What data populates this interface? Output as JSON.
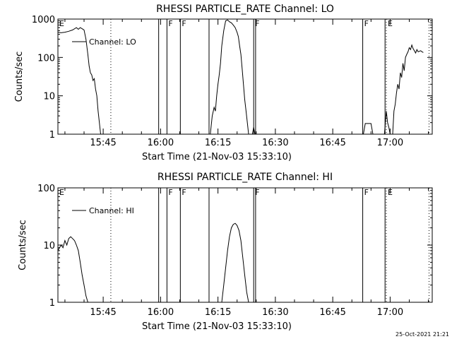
{
  "footer": {
    "timestamp": "25-Oct-2021 21:21"
  },
  "chart_data": [
    {
      "type": "line",
      "title": "RHESSI PARTICLE_RATE Channel: LO",
      "xlabel": "Start Time (21-Nov-03 15:33:10)",
      "ylabel": "Counts/sec",
      "yscale": "log",
      "ylim": [
        1,
        1000
      ],
      "xlim": [
        "15:33:10",
        "17:11:00"
      ],
      "ytick_labels": [
        "1",
        "10",
        "100",
        "1000"
      ],
      "ytick_values": [
        1,
        10,
        100,
        1000
      ],
      "xtick_labels": [
        "15:45",
        "16:00",
        "16:15",
        "16:30",
        "16:45",
        "17:00"
      ],
      "legend": {
        "position": "top-left",
        "entries": [
          "Channel: LO"
        ]
      },
      "series": [
        {
          "name": "Channel: LO",
          "segments": [
            [
              [
                "15:33:10",
                450
              ],
              [
                "15:34:00",
                440
              ],
              [
                "15:35:00",
                455
              ],
              [
                "15:36:00",
                480
              ],
              [
                "15:37:00",
                520
              ],
              [
                "15:38:00",
                600
              ],
              [
                "15:38:30",
                540
              ],
              [
                "15:39:00",
                600
              ],
              [
                "15:39:30",
                560
              ],
              [
                "15:40:00",
                520
              ],
              [
                "15:40:30",
                300
              ],
              [
                "15:41:00",
                120
              ],
              [
                "15:41:20",
                60
              ],
              [
                "15:41:40",
                40
              ],
              [
                "15:42:00",
                35
              ],
              [
                "15:42:20",
                25
              ],
              [
                "15:42:40",
                28
              ],
              [
                "15:43:00",
                15
              ],
              [
                "15:43:20",
                10
              ],
              [
                "15:43:40",
                4
              ],
              [
                "15:44:00",
                2
              ],
              [
                "15:44:20",
                1
              ]
            ],
            [
              [
                "16:13:00",
                1
              ],
              [
                "16:13:30",
                3
              ],
              [
                "16:14:00",
                5
              ],
              [
                "16:14:20",
                4
              ],
              [
                "16:14:40",
                10
              ],
              [
                "16:15:00",
                20
              ],
              [
                "16:15:20",
                35
              ],
              [
                "16:15:40",
                70
              ],
              [
                "16:16:00",
                200
              ],
              [
                "16:16:30",
                500
              ],
              [
                "16:17:00",
                900
              ],
              [
                "16:17:30",
                950
              ],
              [
                "16:18:00",
                850
              ],
              [
                "16:18:30",
                800
              ],
              [
                "16:19:00",
                700
              ],
              [
                "16:19:30",
                600
              ],
              [
                "16:20:00",
                450
              ],
              [
                "16:20:20",
                350
              ],
              [
                "16:20:40",
                200
              ],
              [
                "16:21:00",
                120
              ],
              [
                "16:21:20",
                50
              ],
              [
                "16:21:40",
                20
              ],
              [
                "16:22:00",
                8
              ],
              [
                "16:22:20",
                4
              ],
              [
                "16:22:40",
                2
              ],
              [
                "16:23:00",
                1
              ]
            ],
            [
              [
                "16:24:00",
                1
              ],
              [
                "16:24:20",
                1.5
              ],
              [
                "16:24:40",
                1
              ]
            ],
            [
              [
                "16:53:00",
                1
              ],
              [
                "16:53:30",
                1.9
              ],
              [
                "16:55:00",
                1.9
              ],
              [
                "16:55:30",
                1
              ]
            ],
            [
              [
                "16:58:30",
                1
              ],
              [
                "16:59:00",
                4
              ],
              [
                "16:59:20",
                2
              ],
              [
                "16:59:40",
                1.5
              ],
              [
                "17:00:00",
                1
              ]
            ],
            [
              [
                "17:00:40",
                1
              ],
              [
                "17:01:00",
                4
              ],
              [
                "17:01:20",
                6
              ],
              [
                "17:01:40",
                12
              ],
              [
                "17:02:00",
                20
              ],
              [
                "17:02:20",
                15
              ],
              [
                "17:02:40",
                40
              ],
              [
                "17:03:00",
                30
              ],
              [
                "17:03:20",
                70
              ],
              [
                "17:03:40",
                45
              ],
              [
                "17:04:00",
                100
              ],
              [
                "17:04:20",
                120
              ],
              [
                "17:04:40",
                140
              ],
              [
                "17:05:00",
                180
              ],
              [
                "17:05:20",
                160
              ],
              [
                "17:05:40",
                210
              ],
              [
                "17:06:00",
                170
              ],
              [
                "17:06:20",
                150
              ],
              [
                "17:06:40",
                130
              ],
              [
                "17:07:00",
                160
              ],
              [
                "17:07:20",
                140
              ],
              [
                "17:07:40",
                145
              ],
              [
                "17:08:00",
                150
              ],
              [
                "17:08:20",
                140
              ],
              [
                "17:08:40",
                135
              ]
            ]
          ]
        }
      ],
      "markers": [
        {
          "time": "15:33:10",
          "style": "solid",
          "label": "E"
        },
        {
          "time": "15:47:00",
          "style": "dotted",
          "label": ""
        },
        {
          "time": "15:59:30",
          "style": "solid",
          "label": ""
        },
        {
          "time": "16:01:40",
          "style": "solid",
          "label": "F"
        },
        {
          "time": "16:05:10",
          "style": "solid",
          "label": "F"
        },
        {
          "time": "16:12:40",
          "style": "solid",
          "label": ""
        },
        {
          "time": "16:24:20",
          "style": "solid",
          "label": "F"
        },
        {
          "time": "16:24:50",
          "style": "solid",
          "label": ""
        },
        {
          "time": "16:52:50",
          "style": "solid",
          "label": "F"
        },
        {
          "time": "16:58:40",
          "style": "solid",
          "label": ""
        },
        {
          "time": "16:59:00",
          "style": "dotted",
          "label": "E"
        },
        {
          "time": "17:10:10",
          "style": "dotted",
          "label": ""
        }
      ]
    },
    {
      "type": "line",
      "title": "RHESSI PARTICLE_RATE Channel: HI",
      "xlabel": "Start Time (21-Nov-03 15:33:10)",
      "ylabel": "Counts/sec",
      "yscale": "log",
      "ylim": [
        1,
        100
      ],
      "xlim": [
        "15:33:10",
        "17:11:00"
      ],
      "ytick_labels": [
        "1",
        "10",
        "100"
      ],
      "ytick_values": [
        1,
        10,
        100
      ],
      "xtick_labels": [
        "15:45",
        "16:00",
        "16:15",
        "16:30",
        "16:45",
        "17:00"
      ],
      "legend": {
        "position": "top-left",
        "entries": [
          "Channel: HI"
        ]
      },
      "series": [
        {
          "name": "Channel: HI",
          "segments": [
            [
              [
                "15:33:10",
                8
              ],
              [
                "15:34:00",
                10
              ],
              [
                "15:34:30",
                9
              ],
              [
                "15:35:00",
                12
              ],
              [
                "15:35:30",
                10
              ],
              [
                "15:36:00",
                13
              ],
              [
                "15:36:30",
                14
              ],
              [
                "15:37:00",
                13
              ],
              [
                "15:37:30",
                12
              ],
              [
                "15:38:00",
                10
              ],
              [
                "15:38:30",
                8
              ],
              [
                "15:39:00",
                5
              ],
              [
                "15:39:30",
                3
              ],
              [
                "15:40:00",
                2
              ],
              [
                "15:40:30",
                1.3
              ],
              [
                "15:41:00",
                1
              ]
            ],
            [
              [
                "16:16:00",
                1
              ],
              [
                "16:16:30",
                2
              ],
              [
                "16:17:00",
                4
              ],
              [
                "16:17:30",
                8
              ],
              [
                "16:18:00",
                14
              ],
              [
                "16:18:30",
                20
              ],
              [
                "16:19:00",
                23
              ],
              [
                "16:19:30",
                24
              ],
              [
                "16:20:00",
                22
              ],
              [
                "16:20:30",
                18
              ],
              [
                "16:21:00",
                12
              ],
              [
                "16:21:30",
                6
              ],
              [
                "16:22:00",
                3
              ],
              [
                "16:22:30",
                1.5
              ],
              [
                "16:23:00",
                1
              ]
            ]
          ]
        }
      ],
      "markers": [
        {
          "time": "15:33:10",
          "style": "solid",
          "label": "E"
        },
        {
          "time": "15:47:00",
          "style": "dotted",
          "label": ""
        },
        {
          "time": "15:59:30",
          "style": "solid",
          "label": ""
        },
        {
          "time": "16:01:40",
          "style": "solid",
          "label": "F"
        },
        {
          "time": "16:05:10",
          "style": "solid",
          "label": "F"
        },
        {
          "time": "16:12:40",
          "style": "solid",
          "label": ""
        },
        {
          "time": "16:24:20",
          "style": "solid",
          "label": "F"
        },
        {
          "time": "16:24:50",
          "style": "solid",
          "label": ""
        },
        {
          "time": "16:52:50",
          "style": "solid",
          "label": "F"
        },
        {
          "time": "16:58:40",
          "style": "solid",
          "label": ""
        },
        {
          "time": "16:59:00",
          "style": "dotted",
          "label": "E"
        },
        {
          "time": "17:10:10",
          "style": "dotted",
          "label": ""
        }
      ]
    }
  ]
}
